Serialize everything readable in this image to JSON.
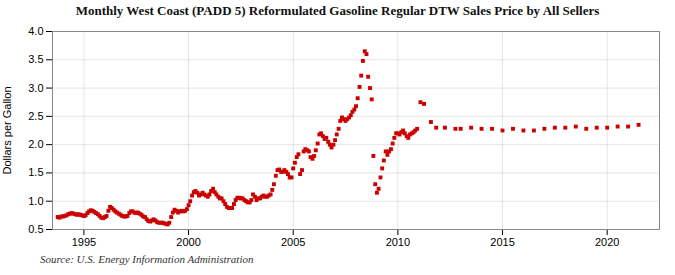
{
  "chart_data": {
    "type": "scatter",
    "title": "Monthly West Coast (PADD 5) Reformulated Gasoline Regular DTW Sales Price by All Sellers",
    "ylabel": "Dollars per Gallon",
    "annotation": "Source: U.S. Energy Information Administration",
    "color": "#cc0000",
    "marker": "square",
    "grid": true,
    "xlim": [
      1993.5,
      2022.5
    ],
    "ylim": [
      0.5,
      4.0
    ],
    "xticks": [
      1995,
      2000,
      2005,
      2010,
      2015,
      2020
    ],
    "yticks": [
      0.5,
      {
        "value": 1.0,
        "label": "1.0"
      },
      1.5,
      {
        "value": 2.0,
        "label": "2.0"
      },
      2.5,
      {
        "value": 3.0,
        "label": "3.0"
      },
      3.5,
      {
        "value": 4.0,
        "label": "4.0"
      }
    ],
    "x": [
      1993.75,
      1993.83,
      1993.92,
      1994.0,
      1994.08,
      1994.17,
      1994.25,
      1994.33,
      1994.42,
      1994.5,
      1994.58,
      1994.67,
      1994.75,
      1994.83,
      1994.92,
      1995.0,
      1995.08,
      1995.17,
      1995.25,
      1995.33,
      1995.42,
      1995.5,
      1995.58,
      1995.67,
      1995.75,
      1995.83,
      1995.92,
      1996.0,
      1996.08,
      1996.17,
      1996.25,
      1996.33,
      1996.42,
      1996.5,
      1996.58,
      1996.67,
      1996.75,
      1996.83,
      1996.92,
      1997.0,
      1997.08,
      1997.17,
      1997.25,
      1997.33,
      1997.42,
      1997.5,
      1997.58,
      1997.67,
      1997.75,
      1997.83,
      1997.92,
      1998.0,
      1998.08,
      1998.17,
      1998.25,
      1998.33,
      1998.42,
      1998.5,
      1998.58,
      1998.67,
      1998.75,
      1998.83,
      1998.92,
      1999.0,
      1999.08,
      1999.17,
      1999.25,
      1999.33,
      1999.42,
      1999.5,
      1999.58,
      1999.67,
      1999.75,
      1999.83,
      1999.92,
      2000.0,
      2000.08,
      2000.17,
      2000.25,
      2000.33,
      2000.42,
      2000.5,
      2000.58,
      2000.67,
      2000.75,
      2000.83,
      2000.92,
      2001.0,
      2001.08,
      2001.17,
      2001.25,
      2001.33,
      2001.42,
      2001.5,
      2001.58,
      2001.67,
      2001.75,
      2001.83,
      2001.92,
      2002.0,
      2002.08,
      2002.17,
      2002.25,
      2002.33,
      2002.42,
      2002.5,
      2002.58,
      2002.67,
      2002.75,
      2002.83,
      2002.92,
      2003.0,
      2003.08,
      2003.17,
      2003.25,
      2003.33,
      2003.42,
      2003.5,
      2003.58,
      2003.67,
      2003.75,
      2003.83,
      2003.92,
      2004.0,
      2004.08,
      2004.17,
      2004.25,
      2004.33,
      2004.42,
      2004.5,
      2004.58,
      2004.67,
      2004.75,
      2004.83,
      2004.92,
      2005.0,
      2005.08,
      2005.17,
      2005.25,
      2005.33,
      2005.42,
      2005.5,
      2005.58,
      2005.67,
      2005.75,
      2005.83,
      2005.92,
      2006.0,
      2006.08,
      2006.17,
      2006.25,
      2006.33,
      2006.42,
      2006.5,
      2006.58,
      2006.67,
      2006.75,
      2006.83,
      2006.92,
      2007.0,
      2007.08,
      2007.17,
      2007.25,
      2007.33,
      2007.42,
      2007.5,
      2007.58,
      2007.67,
      2007.75,
      2007.83,
      2007.92,
      2008.0,
      2008.08,
      2008.17,
      2008.25,
      2008.33,
      2008.42,
      2008.5,
      2008.58,
      2008.67,
      2008.75,
      2008.83,
      2008.92,
      2009.0,
      2009.08,
      2009.17,
      2009.25,
      2009.33,
      2009.42,
      2009.5,
      2009.58,
      2009.67,
      2009.75,
      2009.83,
      2009.92,
      2010.0,
      2010.08,
      2010.17,
      2010.25,
      2010.33,
      2010.42,
      2010.5,
      2010.58,
      2010.67,
      2010.75,
      2010.83,
      2010.92,
      2011.08,
      2011.25,
      2011.58,
      2011.83,
      2012.25,
      2012.75,
      2013.0,
      2013.5,
      2014.0,
      2014.5,
      2015.0,
      2015.5,
      2016.0,
      2016.5,
      2017.0,
      2017.5,
      2018.0,
      2018.5,
      2019.0,
      2019.5,
      2020.0,
      2020.5,
      2021.0,
      2021.5
    ],
    "values": [
      0.72,
      0.71,
      0.73,
      0.73,
      0.74,
      0.75,
      0.77,
      0.78,
      0.79,
      0.78,
      0.77,
      0.76,
      0.77,
      0.76,
      0.75,
      0.74,
      0.75,
      0.79,
      0.82,
      0.84,
      0.83,
      0.81,
      0.79,
      0.77,
      0.74,
      0.71,
      0.7,
      0.72,
      0.74,
      0.83,
      0.9,
      0.88,
      0.85,
      0.82,
      0.8,
      0.78,
      0.76,
      0.74,
      0.73,
      0.73,
      0.74,
      0.79,
      0.82,
      0.82,
      0.8,
      0.79,
      0.8,
      0.78,
      0.76,
      0.73,
      0.72,
      0.68,
      0.65,
      0.64,
      0.66,
      0.68,
      0.66,
      0.63,
      0.62,
      0.62,
      0.62,
      0.61,
      0.6,
      0.59,
      0.62,
      0.72,
      0.8,
      0.85,
      0.83,
      0.8,
      0.82,
      0.83,
      0.82,
      0.83,
      0.86,
      0.93,
      1.0,
      1.1,
      1.16,
      1.18,
      1.15,
      1.1,
      1.12,
      1.15,
      1.12,
      1.1,
      1.08,
      1.12,
      1.18,
      1.22,
      1.16,
      1.12,
      1.08,
      1.05,
      1.05,
      1.0,
      0.95,
      0.9,
      0.88,
      0.88,
      0.88,
      0.95,
      1.02,
      1.06,
      1.06,
      1.05,
      1.05,
      1.02,
      1.0,
      0.98,
      0.98,
      1.02,
      1.12,
      1.08,
      1.02,
      1.05,
      1.05,
      1.08,
      1.1,
      1.08,
      1.08,
      1.1,
      1.12,
      1.2,
      1.3,
      1.45,
      1.55,
      1.56,
      1.52,
      1.52,
      1.55,
      1.52,
      1.48,
      1.42,
      1.42,
      1.58,
      1.68,
      1.78,
      1.83,
      1.48,
      1.55,
      1.88,
      1.92,
      1.9,
      1.88,
      1.78,
      1.75,
      1.8,
      1.9,
      2.02,
      2.18,
      2.2,
      2.15,
      2.1,
      2.12,
      2.05,
      2.0,
      1.95,
      2.0,
      2.08,
      2.18,
      2.28,
      2.42,
      2.48,
      2.45,
      2.42,
      2.45,
      2.48,
      2.52,
      2.58,
      2.62,
      2.68,
      2.82,
      3.02,
      3.22,
      3.48,
      3.65,
      3.6,
      3.2,
      3.0,
      2.8,
      1.8,
      1.3,
      1.15,
      1.22,
      1.42,
      1.58,
      1.72,
      1.88,
      1.82,
      1.88,
      1.92,
      2.02,
      2.12,
      2.2,
      2.2,
      2.18,
      2.22,
      2.25,
      2.2,
      2.15,
      2.12,
      2.18,
      2.2,
      2.22,
      2.25,
      2.28,
      2.75,
      2.72,
      2.4,
      2.3,
      2.3,
      2.28,
      2.28,
      2.3,
      2.28,
      2.28,
      2.25,
      2.28,
      2.25,
      2.25,
      2.28,
      2.3,
      2.3,
      2.32,
      2.28,
      2.3,
      2.3,
      2.32,
      2.32,
      2.35
    ]
  }
}
